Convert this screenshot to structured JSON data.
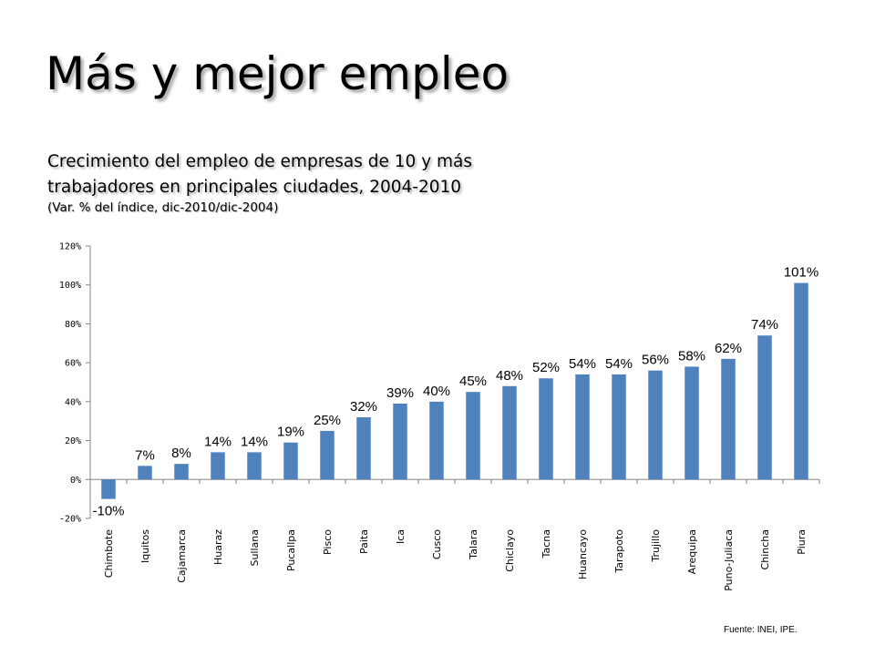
{
  "slide": {
    "title": "Más y mejor empleo",
    "subtitle_line1": "Crecimiento del empleo de empresas de 10 y más",
    "subtitle_line2": "trabajadores en principales ciudades, 2004-2010",
    "subtitle_note": "(Var. % del índice, dic-2010/dic-2004)",
    "source": "Fuente: INEI, IPE."
  },
  "chart_data": {
    "type": "bar",
    "categories": [
      "Chimbote",
      "Iquitos",
      "Cajamarca",
      "Huaraz",
      "Sullana",
      "Pucallpa",
      "Pisco",
      "Paita",
      "Ica",
      "Cusco",
      "Talara",
      "Chiclayo",
      "Tacna",
      "Huancayo",
      "Tarapoto",
      "Trujillo",
      "Arequipa",
      "Puno-Juliaca",
      "Chincha",
      "Piura"
    ],
    "values": [
      -10,
      7,
      8,
      14,
      14,
      19,
      25,
      32,
      39,
      40,
      45,
      48,
      52,
      54,
      54,
      56,
      58,
      62,
      74,
      101
    ],
    "value_labels": [
      "-10%",
      "7%",
      "8%",
      "14%",
      "14%",
      "19%",
      "25%",
      "32%",
      "39%",
      "40%",
      "45%",
      "48%",
      "52%",
      "54%",
      "54%",
      "56%",
      "58%",
      "62%",
      "74%",
      "101%"
    ],
    "yticks": [
      -20,
      0,
      20,
      40,
      60,
      80,
      100,
      120
    ],
    "ytick_labels": [
      "-20%",
      "0%",
      "20%",
      "40%",
      "60%",
      "80%",
      "100%",
      "120%"
    ],
    "ylim": [
      -20,
      120
    ],
    "bar_color": "#4f81bd",
    "grid": false,
    "legend": "none"
  }
}
